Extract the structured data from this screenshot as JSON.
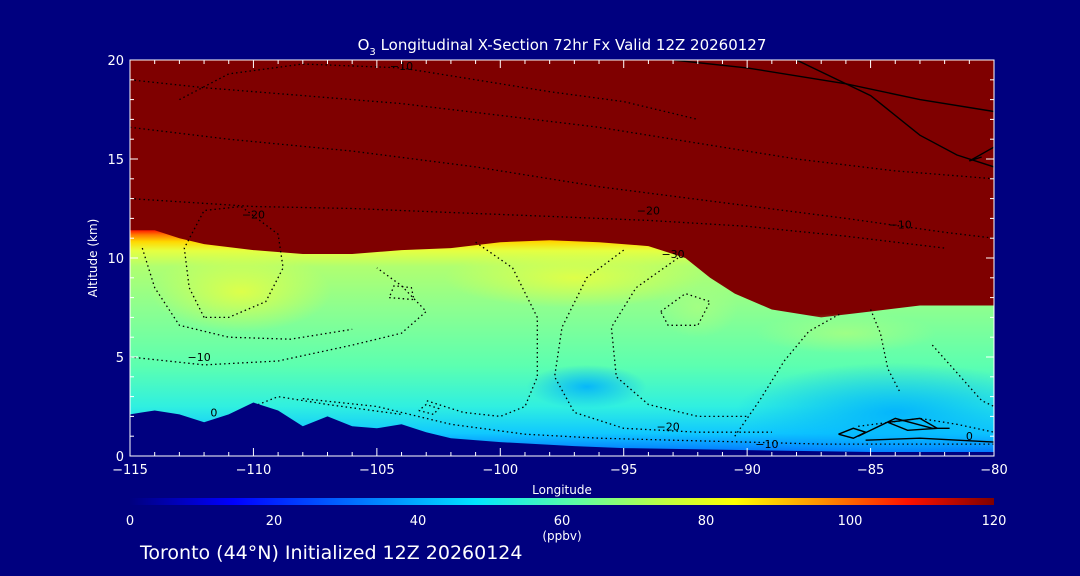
{
  "chart_data": {
    "type": "heatmap",
    "title_prefix": "O",
    "title_subscript": "3",
    "title_rest": " Longitudinal X-Section 72hr  Fx Valid 12Z 20260127",
    "xlabel": "Longitude",
    "ylabel": "Altitude (km)",
    "xlim": [
      -115,
      -80
    ],
    "ylim": [
      0,
      20
    ],
    "x_ticks": [
      -115,
      -110,
      -105,
      -100,
      -95,
      -90,
      -85,
      -80
    ],
    "x_tick_labels": [
      "−115",
      "−110",
      "−105",
      "−100",
      "−95",
      "−90",
      "−85",
      "−80"
    ],
    "y_ticks": [
      0,
      5,
      10,
      15,
      20
    ],
    "y_tick_labels": [
      "0",
      "5",
      "10",
      "15",
      "20"
    ],
    "colorbar": {
      "label": "(ppbv)",
      "ticks": [
        0,
        20,
        40,
        60,
        80,
        100,
        120
      ],
      "tick_labels": [
        "0",
        "20",
        "40",
        "60",
        "80",
        "100",
        "120"
      ],
      "range": [
        0,
        120
      ]
    },
    "surface_km": [
      [
        -115,
        2.1
      ],
      [
        -114.5,
        2.2
      ],
      [
        -114,
        2.3
      ],
      [
        -113,
        2.1
      ],
      [
        -112,
        1.7
      ],
      [
        -111,
        2.1
      ],
      [
        -110,
        2.7
      ],
      [
        -109,
        2.3
      ],
      [
        -108,
        1.5
      ],
      [
        -107,
        2.0
      ],
      [
        -106,
        1.5
      ],
      [
        -105,
        1.4
      ],
      [
        -104,
        1.6
      ],
      [
        -103,
        1.2
      ],
      [
        -102,
        0.9
      ],
      [
        -100,
        0.7
      ],
      [
        -97,
        0.5
      ],
      [
        -95,
        0.4
      ],
      [
        -90,
        0.3
      ],
      [
        -85,
        0.2
      ],
      [
        -80,
        0.2
      ]
    ],
    "tropopause_km": [
      [
        -115,
        11.4
      ],
      [
        -114,
        11.4
      ],
      [
        -113,
        11.0
      ],
      [
        -112,
        10.7
      ],
      [
        -110,
        10.4
      ],
      [
        -108,
        10.2
      ],
      [
        -106,
        10.2
      ],
      [
        -104,
        10.4
      ],
      [
        -102,
        10.5
      ],
      [
        -100,
        10.8
      ],
      [
        -98,
        10.9
      ],
      [
        -96,
        10.8
      ],
      [
        -94,
        10.6
      ],
      [
        -92.5,
        10.0
      ],
      [
        -91.5,
        9.0
      ],
      [
        -90.5,
        8.2
      ],
      [
        -89,
        7.4
      ],
      [
        -87,
        7.0
      ],
      [
        -85,
        7.3
      ],
      [
        -83,
        7.6
      ],
      [
        -80,
        7.6
      ]
    ],
    "contour_labels": [
      {
        "text": "−10",
        "x": -104.0,
        "y": 19.5
      },
      {
        "text": "−20",
        "x": -110.0,
        "y": 12.0
      },
      {
        "text": "−20",
        "x": -94.0,
        "y": 12.2
      },
      {
        "text": "−30",
        "x": -93.0,
        "y": 10.0
      },
      {
        "text": "−10",
        "x": -83.8,
        "y": 11.5
      },
      {
        "text": "−10",
        "x": -112.2,
        "y": 4.8
      },
      {
        "text": "0",
        "x": -111.6,
        "y": 2.0
      },
      {
        "text": "−20",
        "x": -93.2,
        "y": 1.3
      },
      {
        "text": "−10",
        "x": -89.2,
        "y": 0.4
      },
      {
        "text": "0",
        "x": -81.0,
        "y": 0.8
      }
    ]
  },
  "footer": "Toronto (44°N) Initialized 12Z 20260124",
  "colors": {
    "background": "#00007f",
    "stratosphere": "#7f0000",
    "ground": "#00007f",
    "contour": "#000000"
  }
}
